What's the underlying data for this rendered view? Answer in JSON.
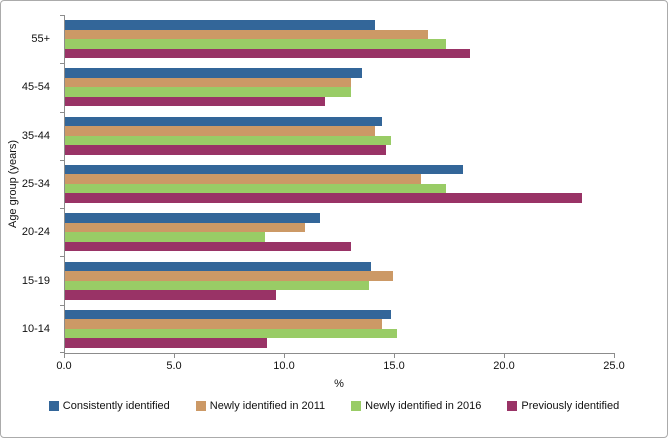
{
  "chart_data": {
    "type": "bar",
    "orientation": "horizontal",
    "title": "",
    "xlabel": "%",
    "ylabel": "Age group (years)",
    "xlim": [
      0,
      25
    ],
    "grid": false,
    "legend_position": "bottom",
    "categories": [
      "55+",
      "45-54",
      "35-44",
      "25-34",
      "20-24",
      "15-19",
      "10-14"
    ],
    "series": [
      {
        "name": "Consistently identified",
        "color": "#336699",
        "values": [
          14.1,
          13.5,
          14.4,
          18.1,
          11.6,
          13.9,
          14.8
        ]
      },
      {
        "name": "Newly identified in 2011",
        "color": "#CC9966",
        "values": [
          16.5,
          13.0,
          14.1,
          16.2,
          10.9,
          14.9,
          14.4
        ]
      },
      {
        "name": "Newly identified in 2016",
        "color": "#99CC66",
        "values": [
          17.3,
          13.0,
          14.8,
          17.3,
          9.1,
          13.8,
          15.1
        ]
      },
      {
        "name": "Previously identified",
        "color": "#993366",
        "values": [
          18.4,
          11.8,
          14.6,
          23.5,
          13.0,
          9.6,
          9.2
        ]
      }
    ],
    "xticks": [
      {
        "value": 0,
        "label": "0.0"
      },
      {
        "value": 5,
        "label": "5.0"
      },
      {
        "value": 10,
        "label": "10.0"
      },
      {
        "value": 15,
        "label": "15.0"
      },
      {
        "value": 20,
        "label": "20.0"
      },
      {
        "value": 25,
        "label": "25.0"
      }
    ],
    "axis_color": "#8c8c8c",
    "text_color": "#111111"
  }
}
